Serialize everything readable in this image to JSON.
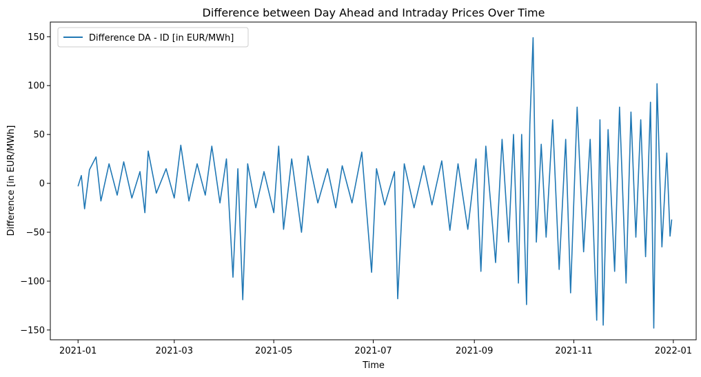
{
  "chart_data": {
    "type": "line",
    "title": "Difference between Day Ahead and Intraday Prices Over Time",
    "xlabel": "Time",
    "ylabel": "Difference [in EUR/MWh]",
    "xlim": [
      "2020-12-15",
      "2022-01-15"
    ],
    "ylim": [
      -160,
      165
    ],
    "x_ticks": [
      "2021-01",
      "2021-03",
      "2021-05",
      "2021-07",
      "2021-09",
      "2021-11",
      "2022-01"
    ],
    "y_ticks": [
      -150,
      -100,
      -50,
      0,
      50,
      100,
      150
    ],
    "grid": false,
    "legend_position": "upper-left",
    "series": [
      {
        "name": "Difference DA - ID [in EUR/MWh]",
        "color": "#1f77b4",
        "points": [
          [
            "2021-01-01",
            -3
          ],
          [
            "2021-01-03",
            8
          ],
          [
            "2021-01-05",
            -26
          ],
          [
            "2021-01-08",
            14
          ],
          [
            "2021-01-12",
            27
          ],
          [
            "2021-01-15",
            -18
          ],
          [
            "2021-01-20",
            20
          ],
          [
            "2021-01-25",
            -12
          ],
          [
            "2021-01-29",
            22
          ],
          [
            "2021-02-03",
            -15
          ],
          [
            "2021-02-08",
            12
          ],
          [
            "2021-02-11",
            -30
          ],
          [
            "2021-02-13",
            33
          ],
          [
            "2021-02-18",
            -10
          ],
          [
            "2021-02-24",
            15
          ],
          [
            "2021-03-01",
            -15
          ],
          [
            "2021-03-05",
            39
          ],
          [
            "2021-03-10",
            -18
          ],
          [
            "2021-03-15",
            20
          ],
          [
            "2021-03-20",
            -12
          ],
          [
            "2021-03-24",
            38
          ],
          [
            "2021-03-29",
            -20
          ],
          [
            "2021-04-02",
            25
          ],
          [
            "2021-04-06",
            -96
          ],
          [
            "2021-04-09",
            15
          ],
          [
            "2021-04-12",
            -119
          ],
          [
            "2021-04-15",
            20
          ],
          [
            "2021-04-20",
            -25
          ],
          [
            "2021-04-25",
            12
          ],
          [
            "2021-05-01",
            -30
          ],
          [
            "2021-05-04",
            38
          ],
          [
            "2021-05-07",
            -47
          ],
          [
            "2021-05-12",
            25
          ],
          [
            "2021-05-18",
            -50
          ],
          [
            "2021-05-22",
            28
          ],
          [
            "2021-05-28",
            -20
          ],
          [
            "2021-06-03",
            15
          ],
          [
            "2021-06-08",
            -25
          ],
          [
            "2021-06-12",
            18
          ],
          [
            "2021-06-18",
            -20
          ],
          [
            "2021-06-24",
            32
          ],
          [
            "2021-06-30",
            -91
          ],
          [
            "2021-07-03",
            15
          ],
          [
            "2021-07-08",
            -22
          ],
          [
            "2021-07-14",
            12
          ],
          [
            "2021-07-16",
            -118
          ],
          [
            "2021-07-20",
            20
          ],
          [
            "2021-07-26",
            -25
          ],
          [
            "2021-08-01",
            18
          ],
          [
            "2021-08-06",
            -22
          ],
          [
            "2021-08-12",
            23
          ],
          [
            "2021-08-17",
            -48
          ],
          [
            "2021-08-22",
            20
          ],
          [
            "2021-08-28",
            -47
          ],
          [
            "2021-09-02",
            25
          ],
          [
            "2021-09-05",
            -90
          ],
          [
            "2021-09-08",
            38
          ],
          [
            "2021-09-12",
            -40
          ],
          [
            "2021-09-14",
            -81
          ],
          [
            "2021-09-18",
            45
          ],
          [
            "2021-09-22",
            -60
          ],
          [
            "2021-09-25",
            50
          ],
          [
            "2021-09-28",
            -102
          ],
          [
            "2021-09-30",
            50
          ],
          [
            "2021-10-03",
            -124
          ],
          [
            "2021-10-05",
            60
          ],
          [
            "2021-10-07",
            149
          ],
          [
            "2021-10-09",
            -60
          ],
          [
            "2021-10-12",
            40
          ],
          [
            "2021-10-15",
            -55
          ],
          [
            "2021-10-19",
            65
          ],
          [
            "2021-10-23",
            -88
          ],
          [
            "2021-10-27",
            45
          ],
          [
            "2021-10-30",
            -112
          ],
          [
            "2021-11-03",
            78
          ],
          [
            "2021-11-07",
            -70
          ],
          [
            "2021-11-11",
            45
          ],
          [
            "2021-11-15",
            -140
          ],
          [
            "2021-11-17",
            65
          ],
          [
            "2021-11-19",
            -145
          ],
          [
            "2021-11-22",
            55
          ],
          [
            "2021-11-26",
            -90
          ],
          [
            "2021-11-29",
            78
          ],
          [
            "2021-12-03",
            -102
          ],
          [
            "2021-12-06",
            73
          ],
          [
            "2021-12-09",
            -55
          ],
          [
            "2021-12-12",
            65
          ],
          [
            "2021-12-15",
            -75
          ],
          [
            "2021-12-18",
            83
          ],
          [
            "2021-12-20",
            -148
          ],
          [
            "2021-12-22",
            102
          ],
          [
            "2021-12-25",
            -65
          ],
          [
            "2021-12-28",
            31
          ],
          [
            "2021-12-30",
            -54
          ],
          [
            "2021-12-31",
            -37
          ]
        ]
      }
    ]
  }
}
